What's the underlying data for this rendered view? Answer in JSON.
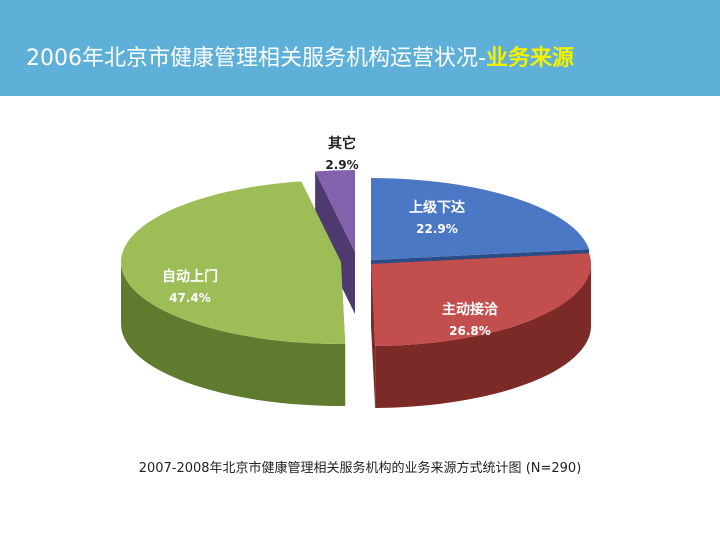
{
  "header": {
    "title_main": "2006年北京市健康管理相关服务机构运营状况-",
    "title_accent": "业务来源"
  },
  "caption": "2007-2008年北京市健康管理相关服务机构的业务来源方式统计图 (N=290)",
  "colors": {
    "header_bg": "#5eb0d8",
    "accent_text": "#f3f000"
  },
  "chart_data": {
    "type": "pie",
    "style": "3d-exploded",
    "unit": "%",
    "slices": [
      {
        "label": "上级下达",
        "value": 22.9,
        "display": "22.9%",
        "color": "#4a78c4",
        "side": "#2b4c86"
      },
      {
        "label": "主动接洽",
        "value": 26.8,
        "display": "26.8%",
        "color": "#c24f4d",
        "side": "#7c2a28"
      },
      {
        "label": "自动上门",
        "value": 47.4,
        "display": "47.4%",
        "color": "#9dbd57",
        "side": "#5f7c2e"
      },
      {
        "label": "其它",
        "value": 2.9,
        "display": "2.9%",
        "color": "#8362ad",
        "side": "#4f3a70"
      }
    ]
  }
}
